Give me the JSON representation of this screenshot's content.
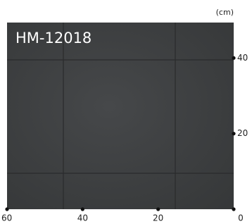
{
  "swatch": {
    "name": "HM-12018",
    "unit": "(cm)",
    "x_ticks": [
      60,
      40,
      20,
      0
    ],
    "y_ticks": [
      40,
      20
    ]
  }
}
